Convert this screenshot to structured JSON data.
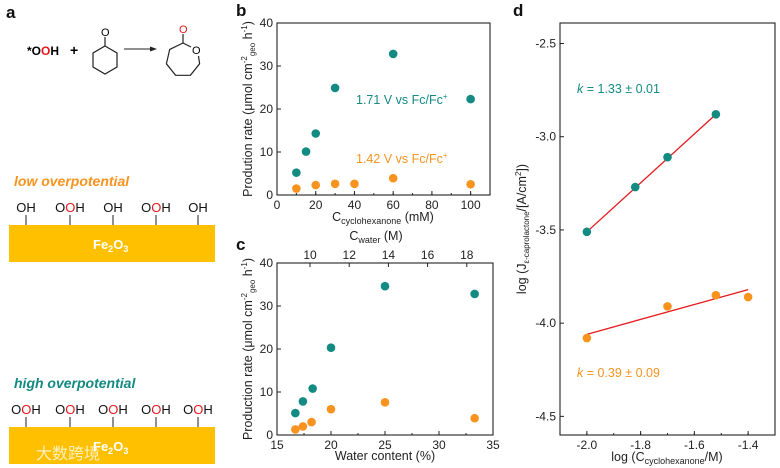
{
  "colors": {
    "teal": "#138a82",
    "orange": "#f7931e",
    "gold": "#ffc000",
    "red": "#e8161b",
    "fit": "#e31a1c"
  },
  "panel_a": {
    "letter": "a",
    "reaction": {
      "reagent_parts": [
        "*O",
        "O",
        "H"
      ],
      "plus": "+",
      "ketone_O": "O",
      "lactone_carbonyl_O": "O",
      "lactone_ring_O": "O"
    },
    "low": {
      "title": "low overpotential",
      "sites": [
        "OH",
        "OOH",
        "OH",
        "OOH",
        "OH"
      ],
      "material": "Fe",
      "material_sub1": "2",
      "material_mid": "O",
      "material_sub2": "3"
    },
    "high": {
      "title": "high overpotential",
      "sites": [
        "OOH",
        "OOH",
        "OOH",
        "OOH",
        "OOH"
      ],
      "material": "Fe",
      "material_sub1": "2",
      "material_mid": "O",
      "material_sub2": "3"
    },
    "watermark": "大数跨境"
  },
  "chart_data": [
    {
      "id": "b",
      "letter": "b",
      "type": "scatter",
      "xlabel": {
        "main": "C",
        "sub": "cyclohexanone",
        "tail": " (mM)"
      },
      "ylabel": {
        "p1": "Prodution rate (μmol cm",
        "sup1": "-2",
        "sub1": "geo",
        "p2": " h",
        "sup2": "-1",
        "p3": ")"
      },
      "xlim": [
        0,
        110
      ],
      "ylim": [
        0,
        40
      ],
      "xticks": [
        0,
        20,
        40,
        60,
        80,
        100
      ],
      "yticks": [
        0,
        10,
        20,
        30,
        40
      ],
      "series": [
        {
          "name": "1.71 V vs Fc/Fc+",
          "label": "1.71 V vs Fc/Fc",
          "label_sup": "+",
          "color": "#138a82",
          "x": [
            10,
            15,
            20,
            30,
            60,
            100
          ],
          "y": [
            5.2,
            10.1,
            14.3,
            24.9,
            32.8,
            22.3
          ]
        },
        {
          "name": "1.42 V vs Fc/Fc+",
          "label": "1.42 V vs Fc/Fc",
          "label_sup": "+",
          "color": "#f7931e",
          "x": [
            10,
            20,
            30,
            40,
            60,
            100
          ],
          "y": [
            1.5,
            2.3,
            2.6,
            2.6,
            3.9,
            2.5
          ]
        }
      ]
    },
    {
      "id": "c",
      "letter": "c",
      "type": "scatter",
      "xlabel": {
        "main": "Water content (%)"
      },
      "x2label": {
        "main": "C",
        "sub": "water",
        "tail": " (M)"
      },
      "ylabel": {
        "p1": "Production rate (μmol cm",
        "sup1": "-2",
        "sub1": "geo",
        "p2": " h",
        "sup2": "-1",
        "p3": ")"
      },
      "xlim": [
        15,
        35
      ],
      "ylim": [
        0,
        40
      ],
      "xticks": [
        15,
        20,
        25,
        30,
        35
      ],
      "yticks": [
        0,
        10,
        20,
        30,
        40
      ],
      "x2ticks": [
        10,
        12,
        14,
        16,
        18
      ],
      "series": [
        {
          "name": "1.71 V vs Fc/Fc+",
          "color": "#138a82",
          "x": [
            16.7,
            17.4,
            18.3,
            20,
            25,
            33.3
          ],
          "y": [
            5.1,
            7.8,
            10.8,
            20.3,
            34.6,
            32.8
          ]
        },
        {
          "name": "1.42 V vs Fc/Fc+",
          "color": "#f7931e",
          "x": [
            16.7,
            17.4,
            18.2,
            20,
            25,
            33.3
          ],
          "y": [
            1.3,
            2.0,
            3.0,
            6.0,
            7.6,
            3.9
          ]
        }
      ]
    },
    {
      "id": "d",
      "letter": "d",
      "type": "scatter",
      "xlabel": {
        "main": "log (C",
        "sub": "cyclohexanone",
        "tail": "/M)"
      },
      "ylabel": {
        "p1": "log (J",
        "sub1": "ε-caprolactone",
        "p2": "/[A/cm",
        "sup2": "2",
        "p3": "])"
      },
      "xlim": [
        -2.1,
        -1.3
      ],
      "ylim": [
        -4.6,
        -2.39
      ],
      "xticks": [
        -2.0,
        -1.8,
        -1.6,
        -1.4
      ],
      "yticks": [
        -4.5,
        -4.0,
        -3.5,
        -3.0,
        -2.5
      ],
      "series": [
        {
          "name": "high overpotential",
          "label": "k",
          "label_rest": " = 1.33 ± 0.01",
          "color": "#138a82",
          "x": [
            -2.0,
            -1.82,
            -1.7,
            -1.52
          ],
          "y": [
            -3.51,
            -3.27,
            -3.11,
            -2.88
          ],
          "fit": {
            "x": [
              -2.0,
              -1.52
            ],
            "y": [
              -3.51,
              -2.88
            ]
          }
        },
        {
          "name": "low overpotential",
          "label": "k",
          "label_rest": " = 0.39 ± 0.09",
          "color": "#f7931e",
          "x": [
            -2.0,
            -1.7,
            -1.52,
            -1.4
          ],
          "y": [
            -4.08,
            -3.91,
            -3.85,
            -3.86
          ],
          "fit": {
            "x": [
              -2.0,
              -1.4
            ],
            "y": [
              -4.06,
              -3.82
            ]
          }
        }
      ]
    }
  ]
}
